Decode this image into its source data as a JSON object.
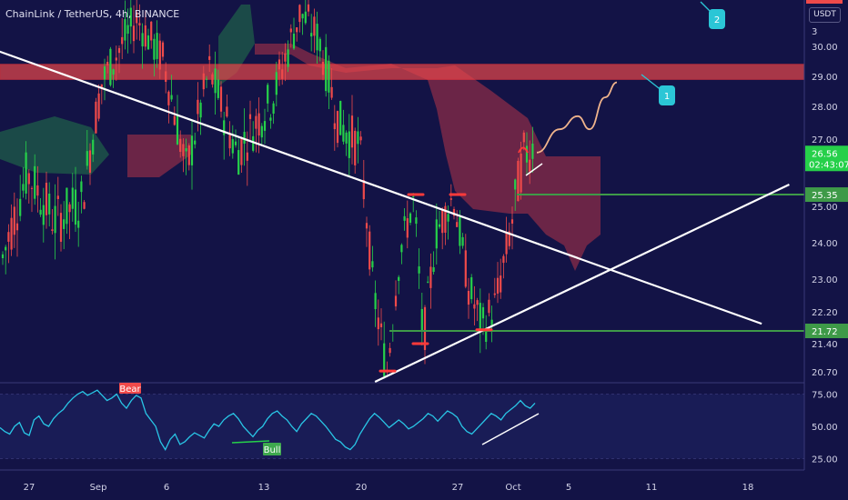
{
  "header": {
    "title": "ChainLink / TetherUS, 4h, BINANCE"
  },
  "currency_badge": "USDT",
  "colors": {
    "background": "#131346",
    "bull": "#26d04a",
    "bear": "#ef4a4a",
    "resistance_zone": "#e8474a",
    "cloud_bear": "#8a2c48",
    "cloud_bull": "#1f5d4a",
    "rsi_line": "#29c6e6",
    "level_line": "#3e9a48",
    "callout": "#2bc6d6"
  },
  "chart_data": [
    {
      "type": "candlestick",
      "title": "ChainLink / TetherUS, 4h, BINANCE",
      "y_axis": {
        "ticks": [
          "30.00",
          "29.00",
          "28.00",
          "27.00",
          "25.00",
          "24.00",
          "23.00",
          "22.20",
          "21.40",
          "20.70"
        ],
        "top_partial_tick": "3"
      },
      "x_axis": {
        "ticks": [
          "27",
          "Sep",
          "6",
          "13",
          "20",
          "27",
          "Oct",
          "5",
          "11",
          "18"
        ]
      },
      "price_labels": [
        {
          "value": "26.56",
          "sub": "02:43:07",
          "color": "#26d04a"
        },
        {
          "value": "25.35",
          "color": "#3e9a48"
        },
        {
          "value": "21.72",
          "color": "#3e9a48"
        }
      ],
      "resistance_zone": [
        28.9,
        29.4
      ],
      "horizontal_levels": [
        25.35,
        21.72
      ],
      "trendlines": [
        {
          "name": "descending",
          "from": [
            "2020-08-17",
            31.2
          ],
          "to": [
            "2020-10-19",
            21.9
          ]
        },
        {
          "name": "ascending",
          "from": [
            "2020-09-21",
            20.45
          ],
          "to": [
            "2020-10-21",
            25.65
          ]
        }
      ],
      "projection": [
        26.6,
        27.3,
        27.7,
        27.3,
        28.3,
        28.8
      ],
      "callouts": [
        "1",
        "2"
      ]
    },
    {
      "type": "line",
      "title": "",
      "y_axis": {
        "ticks": [
          "75.00",
          "50.00",
          "25.00"
        ],
        "ylim": [
          18,
          82
        ]
      },
      "annotations": [
        "Bear",
        "Bull"
      ],
      "values": [
        49,
        46,
        44,
        50,
        53,
        45,
        43,
        55,
        58,
        52,
        50,
        56,
        60,
        63,
        68,
        72,
        75,
        77,
        74,
        76,
        78,
        74,
        70,
        72,
        75,
        68,
        64,
        70,
        74,
        72,
        60,
        55,
        50,
        38,
        32,
        40,
        44,
        36,
        38,
        42,
        45,
        43,
        41,
        47,
        52,
        50,
        55,
        58,
        60,
        56,
        50,
        46,
        42,
        47,
        50,
        56,
        60,
        62,
        58,
        55,
        50,
        46,
        52,
        56,
        60,
        58,
        54,
        50,
        45,
        40,
        38,
        34,
        32,
        36,
        44,
        50,
        56,
        60,
        57,
        53,
        49,
        52,
        55,
        52,
        48,
        50,
        53,
        56,
        60,
        58,
        54,
        58,
        62,
        60,
        57,
        50,
        46,
        44,
        48,
        52,
        56,
        60,
        58,
        55,
        60,
        63,
        66,
        70,
        66,
        64,
        68
      ]
    }
  ]
}
